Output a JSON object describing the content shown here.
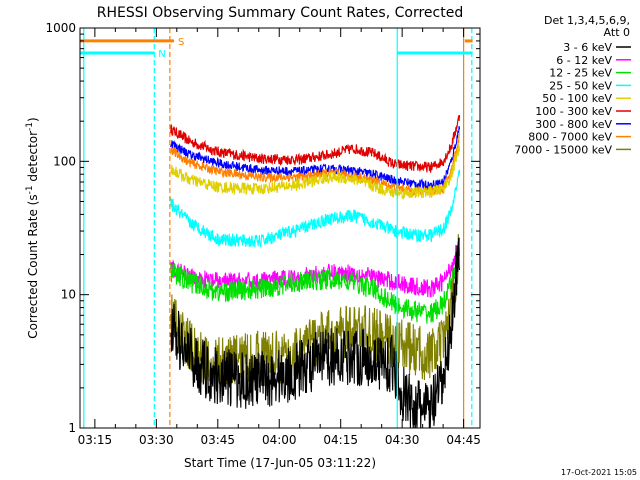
{
  "chart_data": {
    "type": "line",
    "title": "RHESSI Observing Summary Count Rates, Corrected",
    "xlabel": "Start Time (17-Jun-05 03:11:22)",
    "ylabel": "Corrected Count Rate (s⁻¹ detector⁻¹)",
    "ylabel_main": "Corrected Count Rate (s",
    "ylabel_sup1": "-1",
    "ylabel_mid": " detector",
    "ylabel_sup2": "-1",
    "ylabel_end": ")",
    "yscale": "log",
    "ylim": [
      1,
      1000
    ],
    "y_ticks": [
      1,
      10,
      100,
      1000
    ],
    "y_tick_labels": [
      "1",
      "10",
      "100",
      "1000"
    ],
    "xlim_minutes": [
      11.37,
      109.0
    ],
    "x_tick_minutes": [
      15,
      30,
      45,
      60,
      75,
      90,
      105
    ],
    "x_tick_labels": [
      "03:15",
      "03:30",
      "03:45",
      "04:00",
      "04:15",
      "04:30",
      "04:45"
    ],
    "timestamp": "17-Oct-2021 15:05",
    "legend": {
      "header1": "Det 1,3,4,5,6,9,",
      "header2": "Att 0",
      "entries": [
        {
          "label": "3 - 6 keV",
          "color": "#000000"
        },
        {
          "label": "6 - 12 keV",
          "color": "#ff00ff"
        },
        {
          "label": "12 - 25 keV",
          "color": "#00e000"
        },
        {
          "label": "25 - 50 keV",
          "color": "#00ffff"
        },
        {
          "label": "50 - 100 keV",
          "color": "#e0d000"
        },
        {
          "label": "100 - 300 keV",
          "color": "#e00000"
        },
        {
          "label": "300 - 800 keV",
          "color": "#0000ff"
        },
        {
          "label": "800 - 7000 keV",
          "color": "#ff8000"
        },
        {
          "label": "7000 - 15000 keV",
          "color": "#808000"
        }
      ]
    },
    "flags": [
      {
        "name": "S",
        "color": "#ff8000",
        "value": 800,
        "start": 11.37,
        "end": 34.3,
        "start2": 105.3,
        "end2": 107.2
      },
      {
        "name": "N",
        "color": "#00ffff",
        "value": 650,
        "start": 11.37,
        "end": 29.5,
        "start2": 88.8,
        "end2": 107.2
      }
    ],
    "boundaries": [
      {
        "color": "#00ffff",
        "style": "solid",
        "minute": 12.3
      },
      {
        "color": "#00ffff",
        "style": "dash",
        "minute": 29.5
      },
      {
        "color": "#ff8000",
        "style": "dash",
        "minute": 33.3
      },
      {
        "color": "#00ffff",
        "style": "solid",
        "minute": 88.8
      },
      {
        "color": "#ff8000",
        "style": "solid",
        "minute": 105.0
      },
      {
        "color": "#00ffff",
        "style": "dash",
        "minute": 107.0
      }
    ],
    "series": [
      {
        "name": "100 - 300 keV",
        "color": "#e00000",
        "noise": 0.04,
        "points": [
          [
            33.5,
            175
          ],
          [
            38,
            142
          ],
          [
            45,
            118
          ],
          [
            55,
            105
          ],
          [
            65,
            103
          ],
          [
            72,
            112
          ],
          [
            78,
            125
          ],
          [
            83,
            115
          ],
          [
            88,
            95
          ],
          [
            92,
            92
          ],
          [
            97,
            90
          ],
          [
            100,
            100
          ],
          [
            102,
            130
          ],
          [
            104,
            220
          ]
        ]
      },
      {
        "name": "300 - 800 keV",
        "color": "#0000ff",
        "noise": 0.035,
        "points": [
          [
            33.5,
            138
          ],
          [
            38,
            113
          ],
          [
            45,
            97
          ],
          [
            55,
            86
          ],
          [
            65,
            84
          ],
          [
            72,
            88
          ],
          [
            78,
            85
          ],
          [
            83,
            80
          ],
          [
            88,
            72
          ],
          [
            93,
            68
          ],
          [
            97,
            66
          ],
          [
            100,
            70
          ],
          [
            102,
            100
          ],
          [
            104,
            180
          ]
        ]
      },
      {
        "name": "800 - 7000 keV",
        "color": "#ff8000",
        "noise": 0.035,
        "points": [
          [
            33.5,
            122
          ],
          [
            38,
            98
          ],
          [
            45,
            84
          ],
          [
            55,
            76
          ],
          [
            65,
            76
          ],
          [
            72,
            82
          ],
          [
            78,
            78
          ],
          [
            83,
            72
          ],
          [
            88,
            64
          ],
          [
            93,
            60
          ],
          [
            97,
            60
          ],
          [
            100,
            62
          ],
          [
            102,
            85
          ],
          [
            104,
            155
          ]
        ]
      },
      {
        "name": "50 - 100 keV",
        "color": "#e0d000",
        "noise": 0.045,
        "points": [
          [
            33.5,
            88
          ],
          [
            38,
            73
          ],
          [
            45,
            64
          ],
          [
            55,
            62
          ],
          [
            65,
            67
          ],
          [
            72,
            76
          ],
          [
            78,
            74
          ],
          [
            83,
            65
          ],
          [
            88,
            58
          ],
          [
            93,
            58
          ],
          [
            97,
            59
          ],
          [
            100,
            62
          ],
          [
            102,
            78
          ],
          [
            104,
            130
          ]
        ]
      },
      {
        "name": "25 - 50 keV",
        "color": "#00ffff",
        "noise": 0.05,
        "points": [
          [
            33.5,
            48
          ],
          [
            38,
            35
          ],
          [
            45,
            26
          ],
          [
            55,
            25
          ],
          [
            65,
            31
          ],
          [
            72,
            37
          ],
          [
            78,
            39
          ],
          [
            83,
            35
          ],
          [
            88,
            30
          ],
          [
            93,
            28
          ],
          [
            97,
            28
          ],
          [
            100,
            31
          ],
          [
            102,
            42
          ],
          [
            104,
            85
          ]
        ]
      },
      {
        "name": "6 - 12 keV",
        "color": "#ff00ff",
        "noise": 0.07,
        "points": [
          [
            33.5,
            16
          ],
          [
            38,
            13.5
          ],
          [
            45,
            12.5
          ],
          [
            55,
            12.5
          ],
          [
            65,
            13.5
          ],
          [
            72,
            14.5
          ],
          [
            78,
            14.5
          ],
          [
            83,
            13.5
          ],
          [
            88,
            12.5
          ],
          [
            93,
            11.5
          ],
          [
            97,
            11
          ],
          [
            100,
            12.5
          ],
          [
            102,
            16
          ],
          [
            104,
            25
          ]
        ]
      },
      {
        "name": "12 - 25 keV",
        "color": "#00e000",
        "noise": 0.08,
        "points": [
          [
            33.5,
            15
          ],
          [
            38,
            12.5
          ],
          [
            45,
            10.5
          ],
          [
            55,
            11
          ],
          [
            65,
            12.5
          ],
          [
            72,
            13
          ],
          [
            78,
            12.5
          ],
          [
            83,
            11
          ],
          [
            88,
            8.5
          ],
          [
            93,
            7.5
          ],
          [
            97,
            7.2
          ],
          [
            100,
            8.5
          ],
          [
            102,
            12
          ],
          [
            104,
            22
          ]
        ]
      },
      {
        "name": "7000 - 15000 keV",
        "color": "#808000",
        "noise": 0.2,
        "points": [
          [
            33.5,
            7
          ],
          [
            36,
            5
          ],
          [
            40,
            3.5
          ],
          [
            44,
            3
          ],
          [
            50,
            3.3
          ],
          [
            56,
            3.5
          ],
          [
            62,
            3.3
          ],
          [
            66,
            4.2
          ],
          [
            70,
            4.7
          ],
          [
            75,
            5.2
          ],
          [
            80,
            5.5
          ],
          [
            85,
            4.8
          ],
          [
            89,
            4.3
          ],
          [
            93,
            3.8
          ],
          [
            97,
            3.5
          ],
          [
            100,
            4.2
          ],
          [
            102,
            8
          ],
          [
            104,
            22
          ]
        ]
      },
      {
        "name": "3 - 6 keV",
        "color": "#000000",
        "noise": 0.22,
        "points": [
          [
            33.5,
            6
          ],
          [
            36,
            4.2
          ],
          [
            40,
            3
          ],
          [
            44,
            2.5
          ],
          [
            50,
            2.3
          ],
          [
            56,
            2.3
          ],
          [
            62,
            2.5
          ],
          [
            67,
            3
          ],
          [
            72,
            3.4
          ],
          [
            78,
            3.5
          ],
          [
            84,
            3.2
          ],
          [
            88,
            3
          ],
          [
            90,
            1.8
          ],
          [
            93,
            1.4
          ],
          [
            97,
            1.4
          ],
          [
            100,
            2.2
          ],
          [
            102,
            6
          ],
          [
            104,
            25
          ]
        ]
      }
    ]
  }
}
